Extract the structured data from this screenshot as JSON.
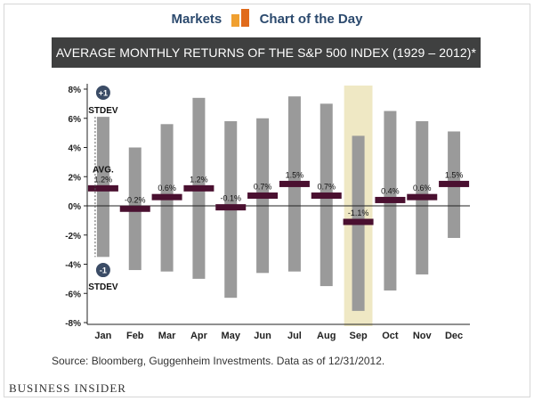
{
  "header": {
    "left_label": "Markets",
    "right_label": "Chart of the Day",
    "logo_icon": "bar-blocks-icon",
    "logo_colors": [
      "#f0a030",
      "#e06a1b"
    ]
  },
  "title": "AVERAGE MONTHLY RETURNS OF THE S&P 500 INDEX (1929 – 2012)*",
  "source": "Source: Bloomberg, Guggenheim Investments. Data as of 12/31/2012.",
  "footer": "BUSINESS INSIDER",
  "chart_data": {
    "type": "bar",
    "categories": [
      "Jan",
      "Feb",
      "Mar",
      "Apr",
      "May",
      "Jun",
      "Jul",
      "Aug",
      "Sep",
      "Oct",
      "Nov",
      "Dec"
    ],
    "series": [
      {
        "values": [
          1.2,
          -0.2,
          0.6,
          1.2,
          -0.1,
          0.7,
          1.5,
          0.7,
          -1.1,
          0.4,
          0.6,
          1.5
        ]
      },
      {
        "values": [
          6.1,
          4.0,
          5.6,
          7.4,
          5.8,
          6.0,
          7.5,
          7.0,
          4.8,
          6.5,
          5.8,
          5.1
        ]
      },
      {
        "values": [
          -3.5,
          -4.4,
          -4.5,
          -5.0,
          -6.3,
          -4.6,
          -4.5,
          -5.5,
          -7.2,
          -5.8,
          -4.7,
          -2.2
        ]
      }
    ],
    "data_labels": [
      "1.2%",
      "-0.2%",
      "0.6%",
      "1.2%",
      "-0.1%",
      "0.7%",
      "1.5%",
      "0.7%",
      "-1.1%",
      "0.4%",
      "0.6%",
      "1.5%"
    ],
    "ylim": [
      -8,
      8
    ],
    "yticks": [
      -8,
      -6,
      -4,
      -2,
      0,
      2,
      4,
      6,
      8
    ],
    "ytick_labels": [
      "-8%",
      "-6%",
      "-4%",
      "-2%",
      "0%",
      "2%",
      "4%",
      "6%",
      "8%"
    ],
    "highlight_category": "Sep",
    "annotations": {
      "plus_badge": "+1",
      "upper_label": "STDEV",
      "avg_label": "AVG.",
      "minus_badge": "-1",
      "lower_label": "STDEV"
    },
    "colors": {
      "range_bar": "#9a9a9a",
      "mean_marker": "#4a1030",
      "highlight": "#efe8c4",
      "badge": "#3b4c66",
      "axis": "#222222"
    },
    "grid": false
  }
}
